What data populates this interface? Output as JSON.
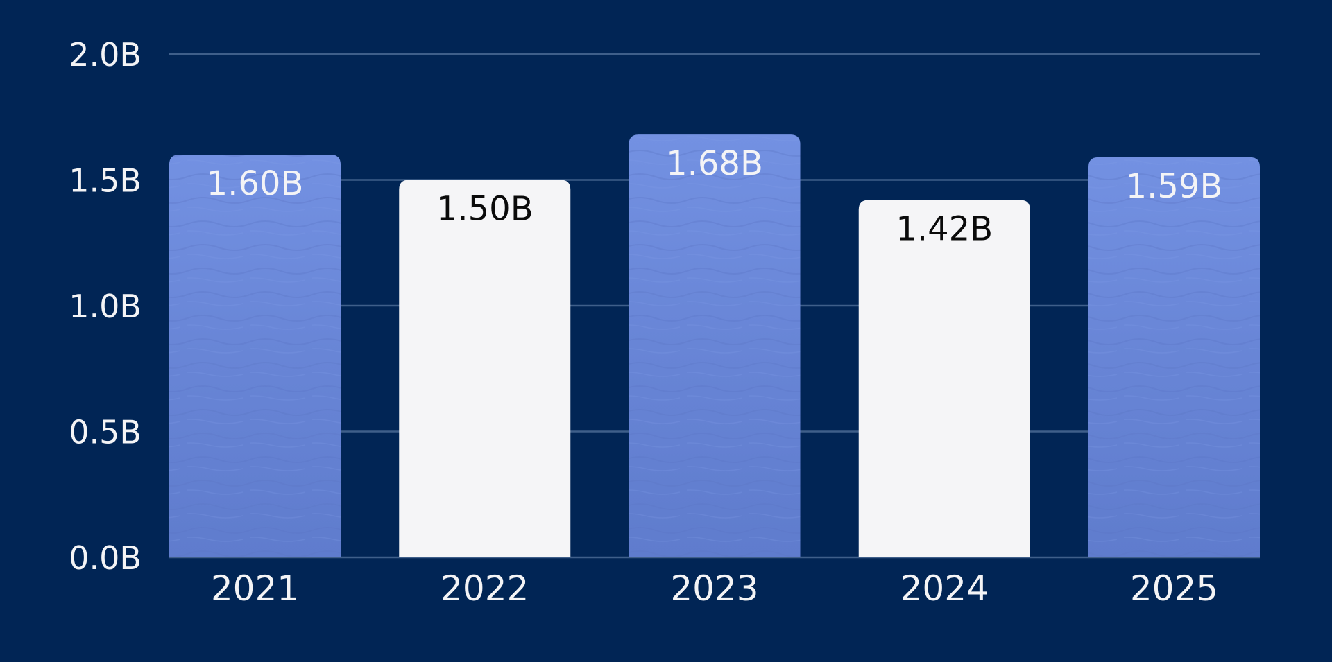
{
  "chart_data": {
    "type": "bar",
    "title": "",
    "xlabel": "",
    "ylabel": "",
    "categories": [
      "2021",
      "2022",
      "2023",
      "2024",
      "2025"
    ],
    "values": [
      1.6,
      1.5,
      1.68,
      1.42,
      1.59
    ],
    "value_labels": [
      "1.60B",
      "1.50B",
      "1.68B",
      "1.42B",
      "1.59B"
    ],
    "ylim": [
      0,
      2.0
    ],
    "yticks": [
      0.0,
      0.5,
      1.0,
      1.5,
      2.0
    ],
    "ytick_labels": [
      "0.0B",
      "0.5B",
      "1.0B",
      "1.5B",
      "2.0B"
    ],
    "grid": true,
    "bar_fills": [
      "textured-blue",
      "white",
      "textured-blue",
      "white",
      "textured-blue"
    ],
    "colors": {
      "background": "#012555",
      "bar_blue": "#6a86d6",
      "bar_white": "#f5f5f7",
      "grid": "#3f5f8a",
      "text_light": "#f4f4f6",
      "text_dark": "#0a0a0a"
    }
  }
}
